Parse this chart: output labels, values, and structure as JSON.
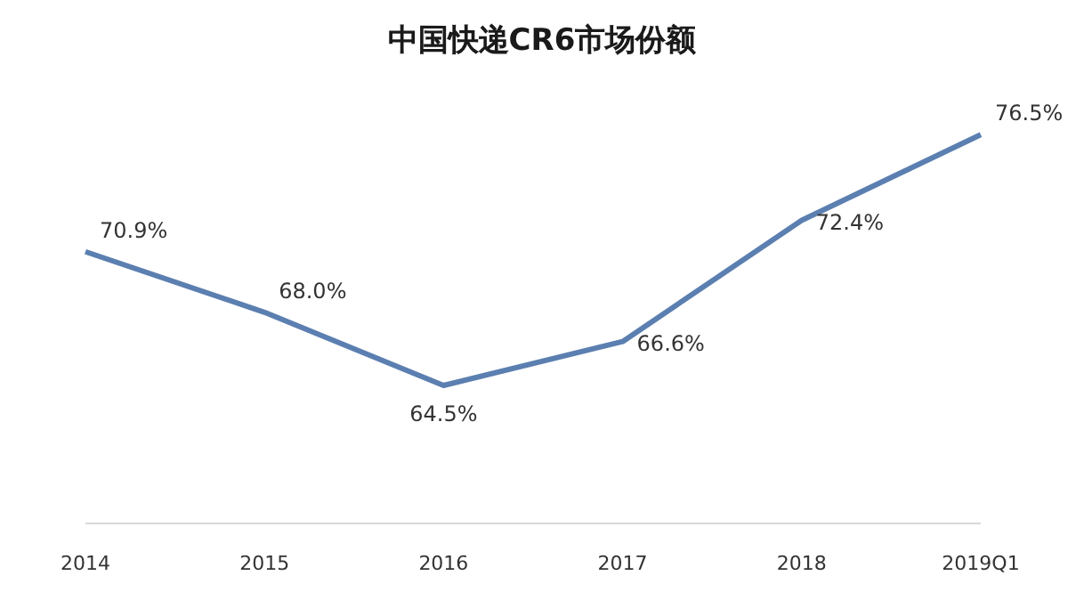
{
  "chart_data": {
    "type": "line",
    "title": "中国快递CR6市场份额",
    "categories": [
      "2014",
      "2015",
      "2016",
      "2017",
      "2018",
      "2019Q1"
    ],
    "series": [
      {
        "color": "#5b7fb0",
        "values": [
          70.9,
          68.0,
          64.5,
          66.6,
          72.4,
          76.5
        ],
        "value_labels": [
          "70.9%",
          "68.0%",
          "64.5%",
          "66.6%",
          "72.4%",
          "76.5%"
        ]
      }
    ],
    "marker": "none",
    "tick_labels": "x"
  }
}
